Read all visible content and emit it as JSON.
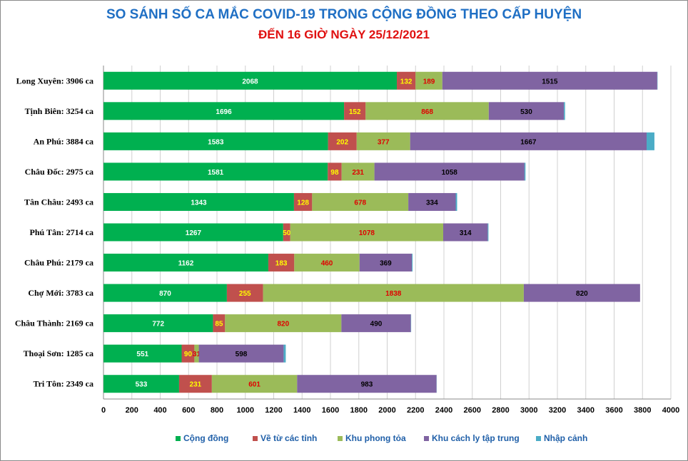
{
  "chart_data": {
    "type": "bar",
    "orientation": "horizontal",
    "stacked": true,
    "title": "SO SÁNH SỐ CA MẮC COVID-19 TRONG CỘNG ĐỒNG THEO CẤP HUYỆN",
    "subtitle": "ĐẾN 16 GIỜ NGÀY 25/12/2021",
    "categories": [
      "Long Xuyên: 3906 ca",
      "Tịnh Biên: 3254 ca",
      "An Phú: 3884 ca",
      "Châu Đốc: 2975 ca",
      "Tân Châu: 2493 ca",
      "Phú Tân: 2714 ca",
      "Châu Phú: 2179 ca",
      "Chợ Mới: 3783 ca",
      "Châu Thành: 2169 ca",
      "Thoại  Sơn: 1285 ca",
      "Tri Tôn:  2349 ca"
    ],
    "series": [
      {
        "name": "Cộng đồng",
        "color": "#00b050",
        "label_color": "#ffffff",
        "values": [
          2068,
          1696,
          1583,
          1581,
          1343,
          1267,
          1162,
          870,
          772,
          551,
          533
        ]
      },
      {
        "name": "Về từ các tỉnh",
        "color": "#c0504d",
        "label_color": "#ffff00",
        "values": [
          132,
          152,
          202,
          98,
          128,
          50,
          183,
          255,
          85,
          90,
          231
        ]
      },
      {
        "name": "Khu phong tỏa",
        "color": "#9bbb59",
        "label_color": "#e00000",
        "values": [
          189,
          868,
          377,
          231,
          678,
          1078,
          460,
          1838,
          820,
          31,
          601
        ]
      },
      {
        "name": "Khu cách  ly tập trung",
        "color": "#8064a2",
        "label_color": "#000000",
        "values": [
          1515,
          530,
          1667,
          1058,
          334,
          314,
          369,
          820,
          490,
          598,
          983
        ]
      },
      {
        "name": "Nhập cảnh",
        "color": "#4bacc6",
        "label_color": "#000000",
        "values": [
          2,
          8,
          55,
          7,
          10,
          5,
          5,
          0,
          2,
          15,
          1
        ]
      }
    ],
    "shown_labels": [
      [
        "2068",
        "132",
        "189",
        "1515",
        ""
      ],
      [
        "1696",
        "152",
        "868",
        "530",
        ""
      ],
      [
        "1583",
        "202",
        "377",
        "1667",
        ""
      ],
      [
        "1581",
        "98",
        "231",
        "1058",
        ""
      ],
      [
        "1343",
        "128",
        "678",
        "334",
        ""
      ],
      [
        "1267",
        "50",
        "1078",
        "314",
        ""
      ],
      [
        "1162",
        "183",
        "460",
        "369",
        ""
      ],
      [
        "870",
        "255",
        "1838",
        "820",
        ""
      ],
      [
        "772",
        "85",
        "820",
        "490",
        ""
      ],
      [
        "551",
        "90",
        "31",
        "598",
        ""
      ],
      [
        "533",
        "231",
        "601",
        "983",
        ""
      ]
    ],
    "x_ticks": [
      "0",
      "200",
      "400",
      "600",
      "800",
      "1000",
      "1200",
      "1400",
      "1600",
      "1800",
      "2000",
      "2200",
      "2400",
      "2600",
      "2800",
      "3000",
      "3200",
      "3400",
      "3600",
      "3800",
      "4000"
    ],
    "xlim": [
      0,
      4000
    ],
    "grid": true,
    "legend_position": "bottom"
  }
}
